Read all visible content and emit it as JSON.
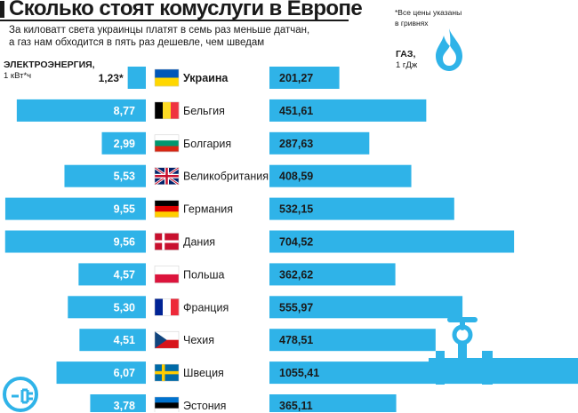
{
  "header": {
    "title": "Сколько стоят комуслуги в Европе",
    "subtitle_line1": "За киловатт света украинцы платят в семь раз меньше датчан,",
    "subtitle_line2": "а газ нам обходится в пять раз дешевле, чем шведам",
    "note_line1": "*Все цены указаны",
    "note_line2": "в гривнях"
  },
  "left_axis": {
    "label": "ЭЛЕКТРОЭНЕРГИЯ,",
    "unit": "1 кВт*ч"
  },
  "right_axis": {
    "label": "ГАЗ,",
    "unit": "1 гДж"
  },
  "colors": {
    "bar": "#2fb3e8",
    "text": "#1a1a1a",
    "bar_text": "#ffffff"
  },
  "icons": [
    "gas-flame-icon",
    "plug-icon",
    "pipe-icon"
  ],
  "chart_data": {
    "type": "bar",
    "categories": [
      "Украина",
      "Бельгия",
      "Болгария",
      "Великобритания",
      "Германия",
      "Дания",
      "Польша",
      "Франция",
      "Чехия",
      "Швеция",
      "Эстония"
    ],
    "highlight": "Украина",
    "series": [
      {
        "name": "ЭЛЕКТРОЭНЕРГИЯ, 1 кВт*ч",
        "values": [
          1.23,
          8.77,
          2.99,
          5.53,
          9.55,
          9.56,
          4.57,
          5.3,
          4.51,
          6.07,
          3.78
        ],
        "labels": [
          "1,23*",
          "8,77",
          "2,99",
          "5,53",
          "9,55",
          "9,56",
          "4,57",
          "5,30",
          "4,51",
          "6,07",
          "3,78"
        ]
      },
      {
        "name": "ГАЗ, 1 гДж",
        "values": [
          201.27,
          451.61,
          287.63,
          408.59,
          532.15,
          704.52,
          362.62,
          555.97,
          478.51,
          1055.41,
          365.11
        ],
        "labels": [
          "201,27",
          "451,61",
          "287,63",
          "408,59",
          "532,15",
          "704,52",
          "362,62",
          "555,97",
          "478,51",
          "1055,41",
          "365,11"
        ]
      }
    ],
    "flags": [
      [
        "#0057b8",
        "#ffd700"
      ],
      [
        "#000000",
        "#fdda24",
        "#ef3340"
      ],
      [
        "#ffffff",
        "#00966e",
        "#d62612"
      ],
      [
        "uk"
      ],
      [
        "#000000",
        "#dd0000",
        "#ffce00"
      ],
      [
        "dk"
      ],
      [
        "#ffffff",
        "#dc143c"
      ],
      [
        "#002395",
        "#ffffff",
        "#ed2939"
      ],
      [
        "cz"
      ],
      [
        "se"
      ],
      [
        "#0072ce",
        "#000000",
        "#ffffff"
      ]
    ]
  }
}
